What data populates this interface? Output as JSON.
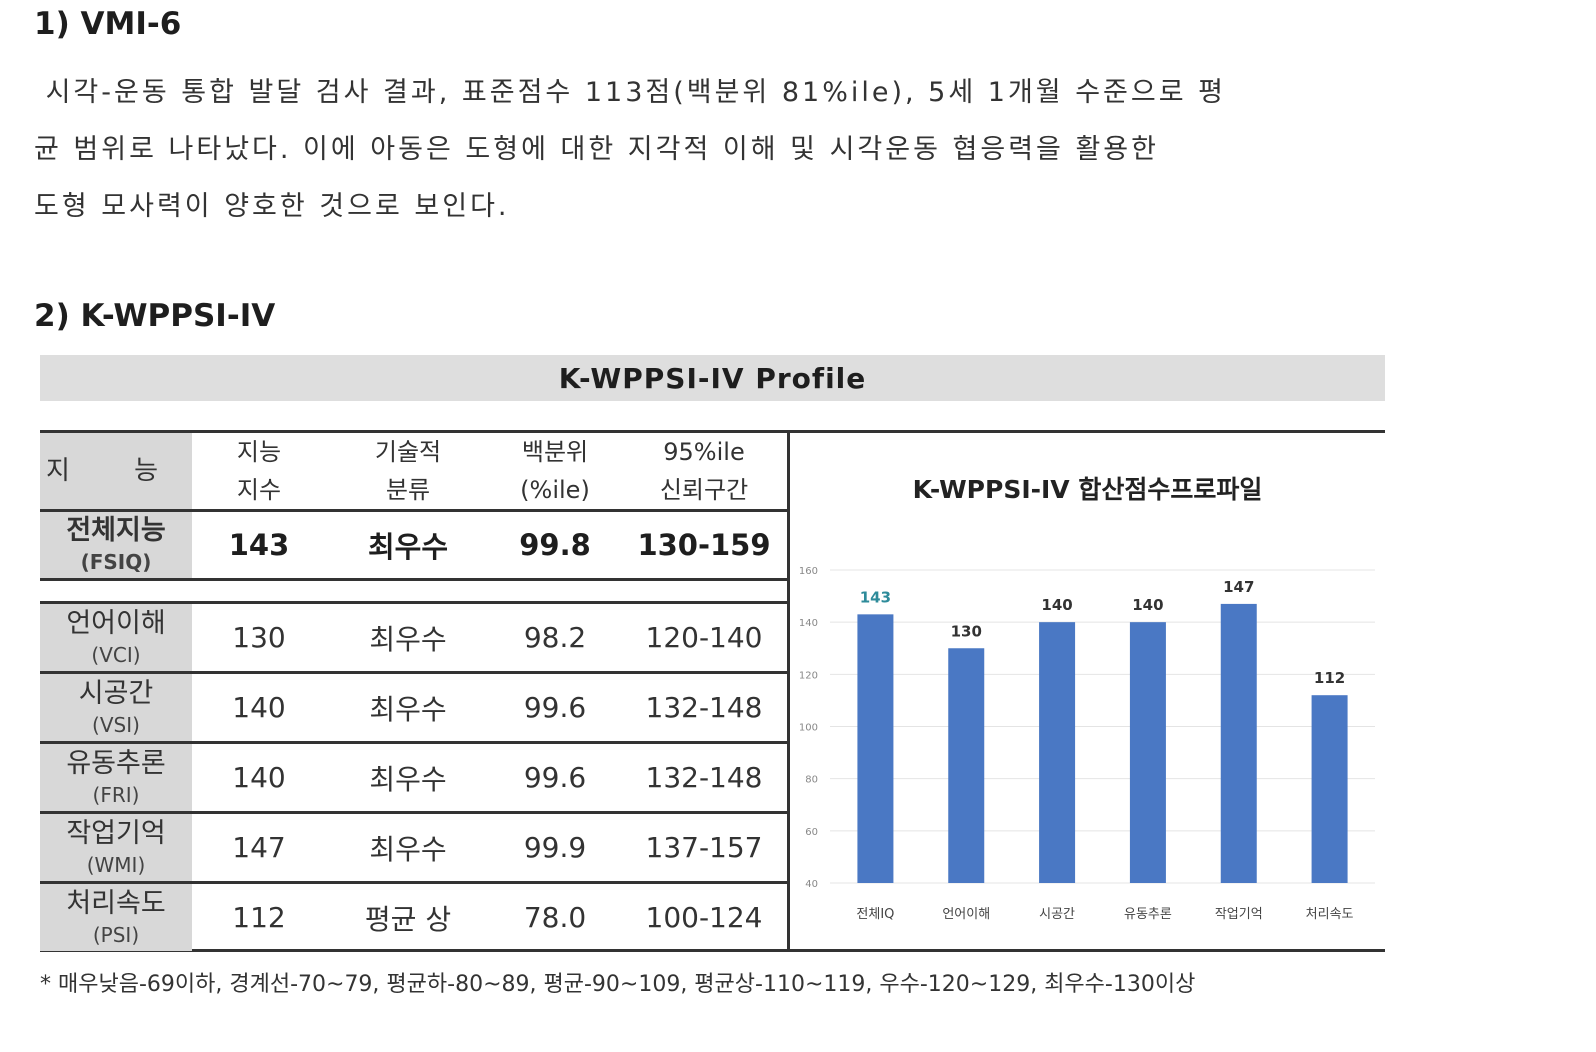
{
  "section1": {
    "heading": "1) VMI-6",
    "lines": [
      " 시각-운동 통합 발달 검사 결과, 표준점수 113점(백분위 81%ile), 5세 1개월 수준으로 평",
      "균 범위로 나타났다. 이에 아동은 도형에 대한 지각적 이해 및 시각운동 협응력을 활용한",
      "도형 모사력이 양호한 것으로 보인다."
    ]
  },
  "section2": {
    "heading": "2) K-WPPSI-IV",
    "banner": "K-WPPSI-IV  Profile"
  },
  "table": {
    "headers": [
      {
        "line1": "지 능",
        "line2": ""
      },
      {
        "line1": "지능",
        "line2": "지수"
      },
      {
        "line1": "기술적",
        "line2": "분류"
      },
      {
        "line1": "백분위",
        "line2": "(%ile)"
      },
      {
        "line1": "95%ile",
        "line2": "신뢰구간"
      }
    ],
    "rows": [
      {
        "kr": "전체지능",
        "en": "(FSIQ)",
        "score": "143",
        "class": "최우수",
        "pct": "99.8",
        "ci": "130-159"
      },
      {
        "kr": "언어이해",
        "en": "(VCI)",
        "score": "130",
        "class": "최우수",
        "pct": "98.2",
        "ci": "120-140"
      },
      {
        "kr": "시공간",
        "en": "(VSI)",
        "score": "140",
        "class": "최우수",
        "pct": "99.6",
        "ci": "132-148"
      },
      {
        "kr": "유동추론",
        "en": "(FRI)",
        "score": "140",
        "class": "최우수",
        "pct": "99.6",
        "ci": "132-148"
      },
      {
        "kr": "작업기억",
        "en": "(WMI)",
        "score": "147",
        "class": "최우수",
        "pct": "99.9",
        "ci": "137-157"
      },
      {
        "kr": "처리속도",
        "en": "(PSI)",
        "score": "112",
        "class": "평균 상",
        "pct": "78.0",
        "ci": "100-124"
      }
    ]
  },
  "chart_data": {
    "type": "bar",
    "title": "K-WPPSI-IV 합산점수프로파일",
    "categories": [
      "전체IQ",
      "언어이해",
      "시공간",
      "유동추론",
      "작업기억",
      "처리속도"
    ],
    "values": [
      143,
      130,
      140,
      140,
      147,
      112
    ],
    "ylim": [
      40,
      160
    ],
    "yticks": [
      40,
      60,
      80,
      100,
      120,
      140,
      160
    ],
    "grid": true,
    "bar_color": "#4a78c4",
    "first_label_color": "#2e8b9a"
  },
  "footnote": "* 매우낮음-69이하, 경계선-70~79, 평균하-80~89, 평균-90~109, 평균상-110~119, 우수-120~129, 최우수-130이상"
}
